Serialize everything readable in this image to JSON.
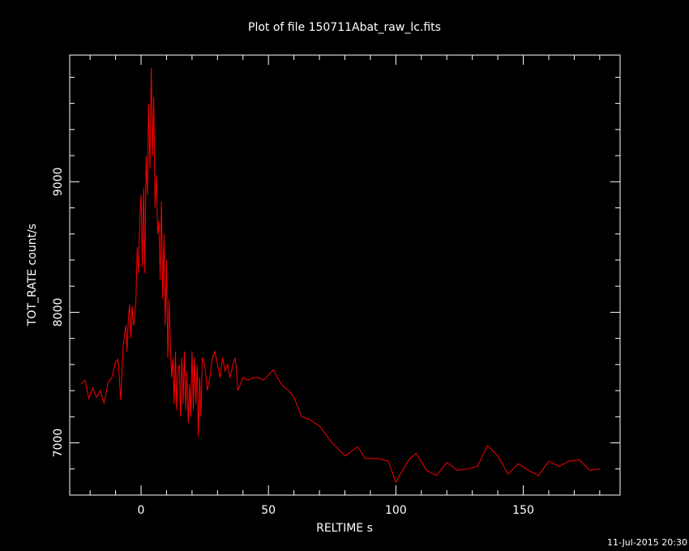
{
  "chart_data": {
    "type": "line",
    "title": "Plot of file 150711Abat_raw_lc.fits",
    "xlabel": "RELTIME  s",
    "ylabel": "TOT_RATE  count/s",
    "xlim": [
      -28,
      188
    ],
    "ylim": [
      6600,
      9970
    ],
    "x_ticks": [
      0,
      50,
      100,
      150
    ],
    "y_ticks": [
      7000,
      8000,
      9000
    ],
    "grid": false,
    "series": [
      {
        "color": "#ff0000",
        "x": [
          -23.5,
          -22,
          -20.5,
          -19,
          -17.5,
          -16,
          -14.5,
          -13,
          -11.5,
          -10,
          -9,
          -8,
          -7,
          -6,
          -5.5,
          -5,
          -4.5,
          -4,
          -3.5,
          -3,
          -2.5,
          -2,
          -1.5,
          -1,
          -0.5,
          0,
          0.5,
          1,
          1.5,
          2,
          2.5,
          3,
          3.5,
          4,
          4.5,
          5,
          5.5,
          6,
          6.5,
          7,
          7.5,
          8,
          8.5,
          9,
          9.5,
          10,
          10.5,
          11,
          11.5,
          12,
          12.5,
          13,
          13.5,
          14,
          14.5,
          15,
          15.5,
          16,
          16.5,
          17,
          17.5,
          18,
          18.5,
          19,
          19.5,
          20,
          20.5,
          21,
          21.5,
          22,
          22.5,
          23,
          23.5,
          24,
          25,
          26,
          27,
          28,
          29,
          30,
          31,
          32,
          33,
          34,
          35,
          36,
          37,
          38,
          40,
          42,
          44,
          46,
          48,
          50,
          52,
          54,
          56,
          58,
          60,
          63,
          66,
          70,
          75,
          80,
          85,
          88,
          93,
          97,
          100,
          105,
          108,
          112,
          116,
          120,
          124,
          128,
          132,
          136,
          140,
          144,
          148,
          152,
          156,
          160,
          164,
          168,
          172,
          176,
          180
        ],
        "values": [
          7450,
          7480,
          7340,
          7420,
          7350,
          7400,
          7300,
          7460,
          7500,
          7620,
          7640,
          7330,
          7750,
          7900,
          7700,
          7950,
          8060,
          7800,
          8050,
          7900,
          7950,
          8100,
          8500,
          8300,
          8700,
          8900,
          8350,
          8950,
          8300,
          9200,
          8900,
          9600,
          9100,
          9870,
          9200,
          9650,
          8800,
          9050,
          8600,
          8700,
          8250,
          8850,
          8100,
          8600,
          7900,
          8400,
          7650,
          8100,
          7750,
          7500,
          7650,
          7300,
          7700,
          7250,
          7550,
          7600,
          7200,
          7650,
          7300,
          7700,
          7250,
          7550,
          7150,
          7450,
          7200,
          7700,
          7250,
          7650,
          7300,
          7600,
          7050,
          7500,
          7200,
          7650,
          7600,
          7400,
          7500,
          7650,
          7700,
          7600,
          7500,
          7650,
          7550,
          7600,
          7500,
          7600,
          7650,
          7400,
          7500,
          7480,
          7500,
          7500,
          7480,
          7520,
          7560,
          7480,
          7430,
          7400,
          7350,
          7200,
          7180,
          7130,
          7000,
          6900,
          6970,
          6880,
          6880,
          6860,
          6700,
          6870,
          6920,
          6790,
          6750,
          6850,
          6790,
          6800,
          6820,
          6980,
          6900,
          6760,
          6840,
          6790,
          6750,
          6860,
          6820,
          6860,
          6870,
          6790,
          6800
        ]
      }
    ]
  },
  "footer": {
    "timestamp": "11-Jul-2015 20:30"
  }
}
